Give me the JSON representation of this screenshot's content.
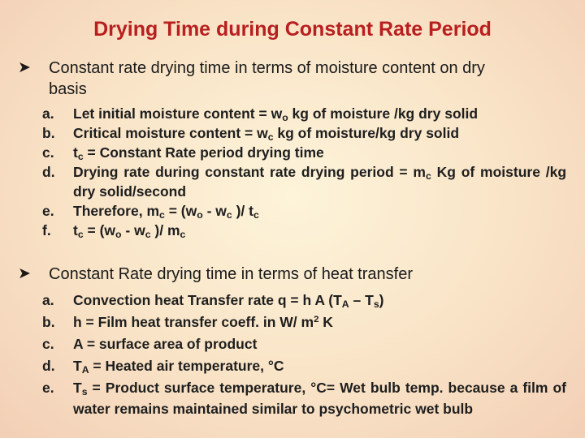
{
  "title": "Drying Time during Constant Rate Period",
  "bullet1": {
    "line1": "Constant rate drying time in terms of moisture content on dry",
    "line2": "basis"
  },
  "list1": {
    "a": {
      "marker": "a.",
      "p1": "Let initial moisture content = w",
      "s1": "o",
      "p2": " kg of moisture /kg dry solid"
    },
    "b": {
      "marker": "b.",
      "p1": "Critical moisture content = w",
      "s1": "c",
      "p2": " kg of moisture/kg dry solid"
    },
    "c": {
      "marker": "c.",
      "p1": "t",
      "s1": "c",
      "p2": " = Constant Rate period drying time"
    },
    "d": {
      "marker": "d.",
      "p1": "Drying rate during constant rate drying period = m",
      "s1": "c",
      "p2": " Kg of moisture /kg dry solid/second"
    },
    "e": {
      "marker": "e.",
      "p1": "Therefore, m",
      "s1": "c",
      "p2": " = (w",
      "s2": "o",
      "p3": " - w",
      "s3": "c",
      "p4": " )/ t",
      "s4": "c"
    },
    "f": {
      "marker": "f.",
      "p1": "t",
      "s1": "c",
      "p2": " = (w",
      "s2": "o",
      "p3": " - w",
      "s3": "c",
      "p4": " )/ m",
      "s4": "c"
    }
  },
  "bullet2": {
    "text": "Constant Rate drying time in terms of heat transfer"
  },
  "list2": {
    "a": {
      "marker": "a.",
      "p1": "Convection heat Transfer rate q = h A (T",
      "s1": "A",
      "p2": " – T",
      "s2": "s",
      "p3": ")"
    },
    "b": {
      "marker": "b.",
      "p1": "h = Film heat transfer coeff. in W/ m",
      "sup1": "2",
      "p2": " K"
    },
    "c": {
      "marker": "c.",
      "text": "A = surface area of product"
    },
    "d": {
      "marker": "d.",
      "p1": "T",
      "s1": "A",
      "p2": " = Heated air temperature, °C"
    },
    "e": {
      "marker": "e.",
      "p1": "T",
      "s1": "s",
      "p2": " = Product surface temperature, °C= Wet bulb temp. because a film of water remains maintained similar to psychometric wet bulb"
    }
  },
  "icons": {
    "bullet_icon": "arrow-bullet-icon"
  },
  "colors": {
    "title": "#b81f1f",
    "background_center": "#fdf4da",
    "background_edge": "#f2cfb6"
  }
}
